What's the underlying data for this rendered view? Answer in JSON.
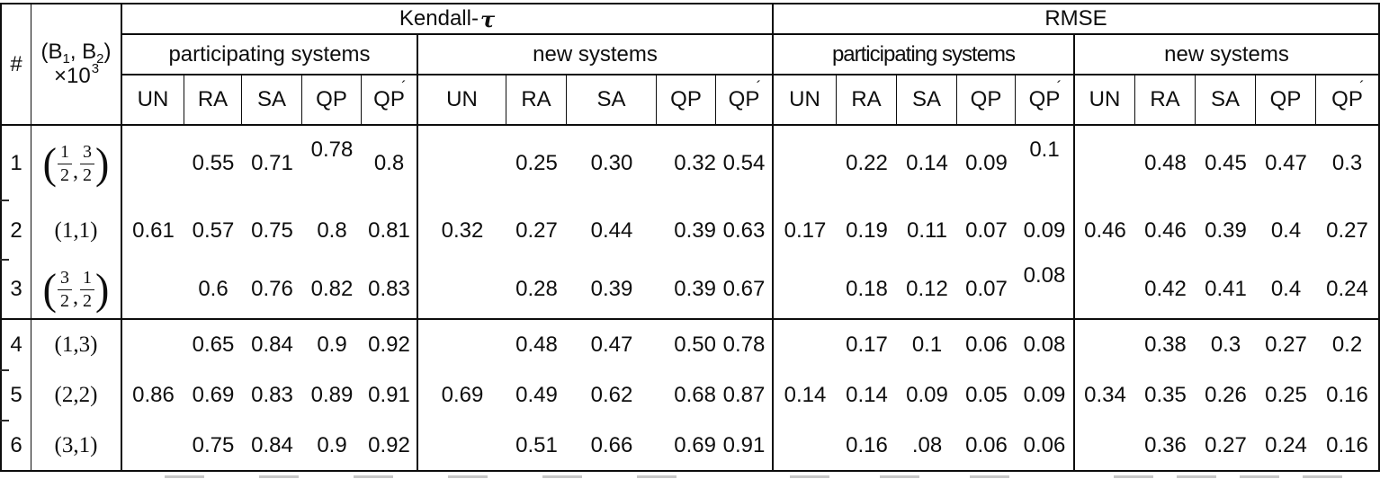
{
  "title_row": {
    "kendall_prefix": "Kendall-",
    "kendall_tau": "τ",
    "rmse": "RMSE"
  },
  "subgroups": {
    "kendall_participating": "participating systems",
    "kendall_new": "new systems",
    "rmse_participating": "participating systems",
    "rmse_new": "new systems"
  },
  "corner": {
    "row_index_symbol": "#",
    "b_open": "(B",
    "b_sub1": "1",
    "b_comma": ", B",
    "b_sub2": "2",
    "b_close": ")",
    "b_factor": "×10",
    "b_exponent": "3"
  },
  "column_headers": {
    "labels": [
      "UN",
      "RA",
      "SA",
      "QP",
      "QP"
    ],
    "acute_mark": "´"
  },
  "rows": [
    {
      "num": "1",
      "b": {
        "fraction": true,
        "n1": "1",
        "d1": "2",
        "n2": "3",
        "d2": "2"
      },
      "cells": {
        "kendall_participating": [
          "",
          "0.55",
          "0.71",
          "0.78",
          "0.8"
        ],
        "kendall_new": [
          "",
          "0.25",
          "0.30",
          "0.32",
          "0.54"
        ],
        "rmse_participating": [
          "",
          "0.22",
          "0.14",
          "0.09",
          "0.1"
        ],
        "rmse_new": [
          "",
          "0.48",
          "0.45",
          "0.47",
          "0.3"
        ]
      }
    },
    {
      "num": "2",
      "b": {
        "fraction": false,
        "text": "(1,1)"
      },
      "cells": {
        "kendall_participating": [
          "0.61",
          "0.57",
          "0.75",
          "0.8",
          "0.81"
        ],
        "kendall_new": [
          "0.32",
          "0.27",
          "0.44",
          "0.39",
          "0.63"
        ],
        "rmse_participating": [
          "0.17",
          "0.19",
          "0.11",
          "0.07",
          "0.09"
        ],
        "rmse_new": [
          "0.46",
          "0.46",
          "0.39",
          "0.4",
          "0.27"
        ]
      }
    },
    {
      "num": "3",
      "b": {
        "fraction": true,
        "n1": "3",
        "d1": "2",
        "n2": "1",
        "d2": "2"
      },
      "cells": {
        "kendall_participating": [
          "",
          "0.6",
          "0.76",
          "0.82",
          "0.83"
        ],
        "kendall_new": [
          "",
          "0.28",
          "0.39",
          "0.39",
          "0.67"
        ],
        "rmse_participating": [
          "",
          "0.18",
          "0.12",
          "0.07",
          "0.08"
        ],
        "rmse_new": [
          "",
          "0.42",
          "0.41",
          "0.4",
          "0.24"
        ]
      }
    },
    {
      "num": "4",
      "b": {
        "fraction": false,
        "text": "(1,3)"
      },
      "cells": {
        "kendall_participating": [
          "",
          "0.65",
          "0.84",
          "0.9",
          "0.92"
        ],
        "kendall_new": [
          "",
          "0.48",
          "0.47",
          "0.50",
          "0.78"
        ],
        "rmse_participating": [
          "",
          "0.17",
          "0.1",
          "0.06",
          "0.08"
        ],
        "rmse_new": [
          "",
          "0.38",
          "0.3",
          "0.27",
          "0.2"
        ]
      }
    },
    {
      "num": "5",
      "b": {
        "fraction": false,
        "text": "(2,2)"
      },
      "cells": {
        "kendall_participating": [
          "0.86",
          "0.69",
          "0.83",
          "0.89",
          "0.91"
        ],
        "kendall_new": [
          "0.69",
          "0.49",
          "0.62",
          "0.68",
          "0.87"
        ],
        "rmse_participating": [
          "0.14",
          "0.14",
          "0.09",
          "0.05",
          "0.09"
        ],
        "rmse_new": [
          "0.34",
          "0.35",
          "0.26",
          "0.25",
          "0.16"
        ]
      }
    },
    {
      "num": "6",
      "b": {
        "fraction": false,
        "text": "(3,1)"
      },
      "cells": {
        "kendall_participating": [
          "",
          "0.75",
          "0.84",
          "0.9",
          "0.92"
        ],
        "kendall_new": [
          "",
          "0.51",
          "0.66",
          "0.69",
          "0.91"
        ],
        "rmse_participating": [
          "",
          "0.16",
          ".08",
          "0.06",
          "0.06"
        ],
        "rmse_new": [
          "",
          "0.36",
          "0.27",
          "0.24",
          "0.16"
        ]
      }
    }
  ]
}
